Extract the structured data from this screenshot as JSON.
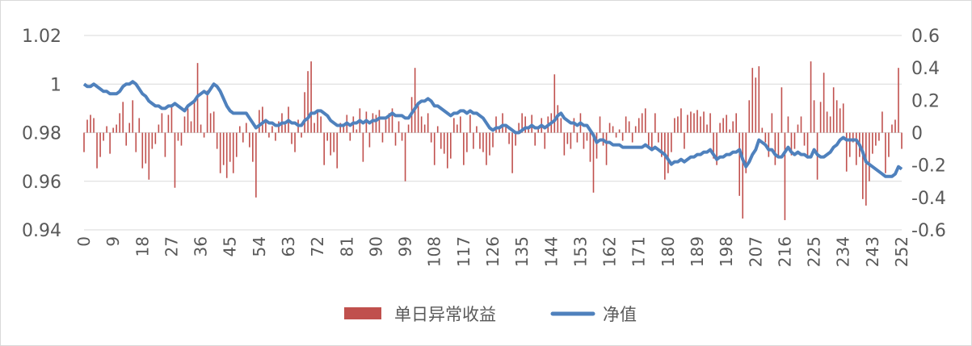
{
  "chart_data": {
    "type": "bar_line",
    "ylim": [
      0.94,
      1.02
    ],
    "yticks": [
      0.94,
      0.96,
      0.98,
      1,
      1.02
    ],
    "y2lim": [
      -0.6,
      0.6
    ],
    "y2ticks": [
      -0.6,
      -0.4,
      -0.2,
      0,
      0.2,
      0.4,
      0.6
    ],
    "xlim": [
      0,
      252
    ],
    "xticks": [
      0,
      9,
      18,
      27,
      36,
      45,
      54,
      63,
      72,
      81,
      90,
      99,
      108,
      117,
      126,
      135,
      144,
      153,
      162,
      171,
      180,
      189,
      198,
      207,
      216,
      225,
      234,
      243,
      252
    ],
    "grid": true,
    "legend": "bottom",
    "x": [
      0,
      1,
      2,
      3,
      4,
      5,
      6,
      7,
      8,
      9,
      10,
      11,
      12,
      13,
      14,
      15,
      16,
      17,
      18,
      19,
      20,
      21,
      22,
      23,
      24,
      25,
      26,
      27,
      28,
      29,
      30,
      31,
      32,
      33,
      34,
      35,
      36,
      37,
      38,
      39,
      40,
      41,
      42,
      43,
      44,
      45,
      46,
      47,
      48,
      49,
      50,
      51,
      52,
      53,
      54,
      55,
      56,
      57,
      58,
      59,
      60,
      61,
      62,
      63,
      64,
      65,
      66,
      67,
      68,
      69,
      70,
      71,
      72,
      73,
      74,
      75,
      76,
      77,
      78,
      79,
      80,
      81,
      82,
      83,
      84,
      85,
      86,
      87,
      88,
      89,
      90,
      91,
      92,
      93,
      94,
      95,
      96,
      97,
      98,
      99,
      100,
      101,
      102,
      103,
      104,
      105,
      106,
      107,
      108,
      109,
      110,
      111,
      112,
      113,
      114,
      115,
      116,
      117,
      118,
      119,
      120,
      121,
      122,
      123,
      124,
      125,
      126,
      127,
      128,
      129,
      130,
      131,
      132,
      133,
      134,
      135,
      136,
      137,
      138,
      139,
      140,
      141,
      142,
      143,
      144,
      145,
      146,
      147,
      148,
      149,
      150,
      151,
      152,
      153,
      154,
      155,
      156,
      157,
      158,
      159,
      160,
      161,
      162,
      163,
      164,
      165,
      166,
      167,
      168,
      169,
      170,
      171,
      172,
      173,
      174,
      175,
      176,
      177,
      178,
      179,
      180,
      181,
      182,
      183,
      184,
      185,
      186,
      187,
      188,
      189,
      190,
      191,
      192,
      193,
      194,
      195,
      196,
      197,
      198,
      199,
      200,
      201,
      202,
      203,
      204,
      205,
      206,
      207,
      208,
      209,
      210,
      211,
      212,
      213,
      214,
      215,
      216,
      217,
      218,
      219,
      220,
      221,
      222,
      223,
      224,
      225,
      226,
      227,
      228,
      229,
      230,
      231,
      232,
      233,
      234,
      235,
      236,
      237,
      238,
      239,
      240,
      241,
      242,
      243,
      244,
      245,
      246,
      247,
      248,
      249,
      250,
      251,
      252
    ],
    "series": [
      {
        "name": "单日异常收益",
        "type": "bar",
        "axis": "y2",
        "color": "#c0504d",
        "values": [
          -0.12,
          0.08,
          0.11,
          0.09,
          -0.22,
          -0.15,
          -0.05,
          0.04,
          -0.13,
          0.03,
          0.05,
          0.12,
          0.19,
          -0.08,
          0.06,
          0.2,
          -0.12,
          0.09,
          -0.22,
          -0.19,
          -0.29,
          -0.1,
          -0.07,
          0.05,
          0.12,
          -0.15,
          0.11,
          0.16,
          -0.34,
          -0.05,
          -0.08,
          0.1,
          0.15,
          0.07,
          0.2,
          0.43,
          0.05,
          -0.03,
          0.26,
          0.12,
          0.13,
          -0.1,
          -0.25,
          -0.2,
          -0.28,
          -0.18,
          -0.25,
          -0.15,
          0.04,
          -0.06,
          0.06,
          -0.09,
          -0.18,
          -0.4,
          0.14,
          0.16,
          0.08,
          -0.03,
          0.04,
          -0.05,
          0.07,
          0.12,
          0.05,
          0.16,
          -0.07,
          -0.12,
          0.08,
          -0.03,
          0.25,
          0.38,
          0.44,
          0.06,
          0.14,
          0.1,
          -0.2,
          -0.05,
          -0.14,
          -0.12,
          -0.22,
          0.06,
          0.04,
          0.11,
          -0.05,
          0.1,
          0.02,
          0.15,
          -0.18,
          0.13,
          -0.09,
          0.12,
          0.11,
          0.14,
          -0.06,
          0.08,
          0.12,
          0.15,
          -0.08,
          0.07,
          -0.05,
          -0.3,
          0.05,
          0.22,
          0.4,
          0.18,
          0.1,
          0.05,
          0.12,
          -0.06,
          -0.2,
          0.04,
          -0.1,
          -0.13,
          -0.22,
          -0.16,
          0.09,
          0.05,
          0.1,
          -0.2,
          -0.12,
          0.11,
          -0.1,
          0.04,
          -0.1,
          -0.12,
          -0.2,
          -0.14,
          -0.09,
          0.1,
          0.02,
          0.12,
          0.05,
          -0.07,
          -0.25,
          -0.08,
          0.06,
          0.12,
          0.1,
          0.02,
          0.11,
          -0.08,
          0.04,
          0.09,
          -0.1,
          0.1,
          0.12,
          0.36,
          0.17,
          0.09,
          -0.14,
          -0.07,
          -0.1,
          0.09,
          -0.06,
          0.12,
          -0.1,
          -0.05,
          -0.18,
          -0.37,
          -0.16,
          0.1,
          -0.08,
          -0.2,
          0.06,
          0.04,
          -0.03,
          0.02,
          -0.05,
          0.1,
          0.07,
          -0.06,
          0.04,
          0.09,
          0.12,
          0.15,
          -0.08,
          -0.1,
          0.12,
          -0.06,
          -0.15,
          -0.29,
          -0.25,
          -0.12,
          0.09,
          0.1,
          0.15,
          -0.1,
          0.11,
          0.13,
          0.12,
          0.14,
          0.1,
          0.13,
          0.05,
          0.12,
          -0.16,
          -0.2,
          0.06,
          0.09,
          0.11,
          0.02,
          0.07,
          0.12,
          -0.39,
          -0.53,
          -0.25,
          0.2,
          0.4,
          0.34,
          0.41,
          0.03,
          -0.06,
          -0.15,
          0.12,
          -0.2,
          -0.15,
          0.28,
          -0.54,
          0.1,
          -0.14,
          -0.1,
          0.05,
          0.1,
          -0.08,
          -0.16,
          0.44,
          0.2,
          -0.29,
          0.19,
          0.37,
          0.13,
          0.1,
          0.28,
          0.2,
          0.15,
          0.18,
          -0.24,
          -0.15,
          -0.06,
          -0.2,
          -0.15,
          -0.41,
          -0.45,
          -0.3,
          -0.13,
          -0.08,
          -0.05,
          0.13,
          -0.25,
          -0.15,
          0.05,
          0.08,
          0.4,
          -0.1
        ]
      },
      {
        "name": "净值",
        "type": "line",
        "axis": "y",
        "color": "#4f81bd",
        "values": [
          1.0,
          0.999,
          0.999,
          1.0,
          0.999,
          0.998,
          0.997,
          0.997,
          0.996,
          0.996,
          0.996,
          0.997,
          0.999,
          1.0,
          1.0,
          1.001,
          1.0,
          0.998,
          0.996,
          0.995,
          0.993,
          0.992,
          0.991,
          0.991,
          0.99,
          0.99,
          0.991,
          0.991,
          0.992,
          0.991,
          0.99,
          0.989,
          0.991,
          0.992,
          0.993,
          0.995,
          0.996,
          0.997,
          0.996,
          0.998,
          1.0,
          0.999,
          0.997,
          0.994,
          0.991,
          0.989,
          0.988,
          0.988,
          0.988,
          0.988,
          0.988,
          0.986,
          0.984,
          0.982,
          0.983,
          0.984,
          0.985,
          0.984,
          0.984,
          0.983,
          0.983,
          0.984,
          0.984,
          0.985,
          0.984,
          0.984,
          0.983,
          0.983,
          0.985,
          0.986,
          0.988,
          0.988,
          0.989,
          0.989,
          0.988,
          0.987,
          0.985,
          0.984,
          0.983,
          0.983,
          0.983,
          0.984,
          0.983,
          0.984,
          0.984,
          0.985,
          0.984,
          0.985,
          0.984,
          0.985,
          0.985,
          0.986,
          0.986,
          0.986,
          0.987,
          0.988,
          0.987,
          0.987,
          0.987,
          0.986,
          0.986,
          0.988,
          0.99,
          0.992,
          0.993,
          0.993,
          0.994,
          0.993,
          0.991,
          0.991,
          0.99,
          0.989,
          0.988,
          0.987,
          0.988,
          0.988,
          0.989,
          0.989,
          0.988,
          0.989,
          0.988,
          0.988,
          0.987,
          0.986,
          0.984,
          0.982,
          0.981,
          0.982,
          0.982,
          0.983,
          0.983,
          0.982,
          0.981,
          0.98,
          0.98,
          0.981,
          0.982,
          0.982,
          0.983,
          0.982,
          0.982,
          0.983,
          0.982,
          0.983,
          0.984,
          0.985,
          0.987,
          0.988,
          0.986,
          0.985,
          0.984,
          0.984,
          0.983,
          0.984,
          0.983,
          0.983,
          0.981,
          0.979,
          0.976,
          0.977,
          0.977,
          0.976,
          0.976,
          0.975,
          0.975,
          0.975,
          0.974,
          0.974,
          0.974,
          0.974,
          0.974,
          0.974,
          0.974,
          0.975,
          0.974,
          0.973,
          0.974,
          0.973,
          0.972,
          0.971,
          0.969,
          0.967,
          0.968,
          0.968,
          0.969,
          0.968,
          0.969,
          0.97,
          0.97,
          0.971,
          0.971,
          0.972,
          0.972,
          0.973,
          0.971,
          0.969,
          0.97,
          0.97,
          0.971,
          0.971,
          0.972,
          0.972,
          0.973,
          0.969,
          0.966,
          0.968,
          0.971,
          0.973,
          0.977,
          0.976,
          0.975,
          0.973,
          0.973,
          0.971,
          0.97,
          0.97,
          0.972,
          0.974,
          0.972,
          0.971,
          0.972,
          0.971,
          0.971,
          0.97,
          0.97,
          0.973,
          0.971,
          0.97,
          0.97,
          0.971,
          0.972,
          0.974,
          0.975,
          0.977,
          0.978,
          0.977,
          0.977,
          0.977,
          0.977,
          0.975,
          0.972,
          0.968,
          0.967,
          0.966,
          0.965,
          0.964,
          0.963,
          0.962,
          0.962,
          0.962,
          0.963,
          0.966,
          0.965
        ]
      }
    ]
  }
}
